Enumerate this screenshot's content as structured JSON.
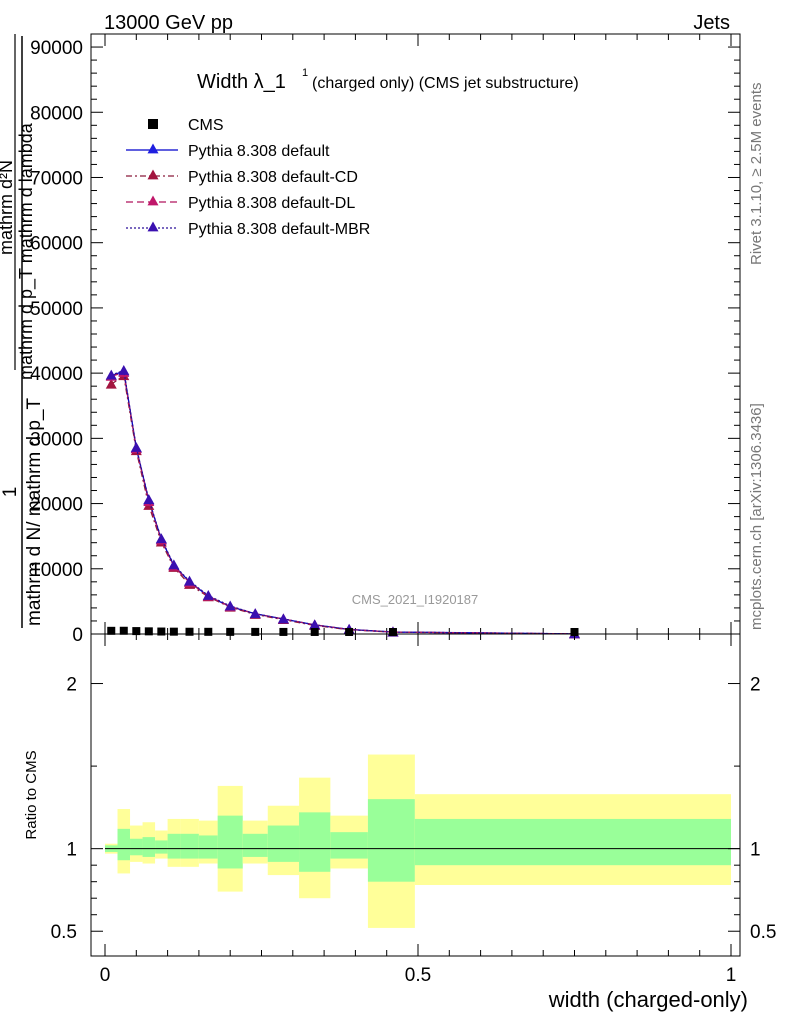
{
  "header": {
    "left": "13000 GeV pp",
    "right": "Jets"
  },
  "side_labels": {
    "rivet": "Rivet 3.1.10, ≥ 2.5M events",
    "mcplots": "mcplots.cern.ch [arXiv:1306.3436]"
  },
  "chart_data": [
    {
      "type": "line",
      "title": "Width λ_1",
      "title_superscript": "1",
      "subtitle": "(charged only) (CMS jet substructure)",
      "watermark": "CMS_2021_I1920187",
      "ylabel": {
        "num_prefix": "1",
        "den": "mathrm d N/ mathrm d p_T",
        "num2": "mathrm d²N",
        "den2": "mathrm d p_T mathrm d lambda"
      },
      "xlim": [
        0,
        1
      ],
      "ylim": [
        0,
        92000
      ],
      "yticks": [
        0,
        10000,
        20000,
        30000,
        40000,
        50000,
        60000,
        70000,
        80000,
        90000
      ],
      "ytick_labels": [
        "0",
        "10000",
        "20000",
        "30000",
        "40000",
        "50000",
        "60000",
        "70000",
        "80000",
        "90000"
      ],
      "legend_position": "top-left",
      "cms": {
        "name": "CMS",
        "x": [
          0.01,
          0.03,
          0.05,
          0.07,
          0.09,
          0.11,
          0.135,
          0.165,
          0.2,
          0.24,
          0.285,
          0.335,
          0.39,
          0.46,
          0.75
        ],
        "y": [
          180,
          190,
          140,
          100,
          72,
          52,
          38,
          28,
          20,
          15,
          10,
          6,
          3,
          1,
          0.5
        ]
      },
      "x": [
        0.01,
        0.03,
        0.05,
        0.07,
        0.09,
        0.11,
        0.135,
        0.165,
        0.2,
        0.24,
        0.285,
        0.335,
        0.39,
        0.46,
        0.75
      ],
      "series": [
        {
          "name": "Pythia 8.308 default",
          "color": "#0000cc",
          "dash": "",
          "marker_color": "#1f1fe0",
          "values": [
            39600,
            40300,
            28500,
            20500,
            14500,
            10500,
            8000,
            5800,
            4200,
            3100,
            2300,
            1400,
            700,
            300,
            20
          ]
        },
        {
          "name": "Pythia 8.308 default-CD",
          "color": "#8b1a3a",
          "dash": "6,3,2,3",
          "marker_color": "#a3153f",
          "values": [
            38300,
            39600,
            28100,
            19700,
            14100,
            10200,
            7600,
            5700,
            4100,
            3000,
            2200,
            1300,
            650,
            280,
            18
          ]
        },
        {
          "name": "Pythia 8.308 default-DL",
          "color": "#b0155e",
          "dash": "7,4",
          "marker_color": "#c0176a",
          "values": [
            39500,
            40100,
            28400,
            20300,
            14400,
            10400,
            7900,
            5800,
            4200,
            3100,
            2300,
            1400,
            700,
            300,
            20
          ]
        },
        {
          "name": "Pythia 8.308 default-MBR",
          "color": "#2a0f99",
          "dash": "2,2",
          "marker_color": "#3a10b0",
          "values": [
            39700,
            40400,
            28600,
            20600,
            14600,
            10600,
            8100,
            5900,
            4300,
            3100,
            2300,
            1400,
            700,
            300,
            20
          ]
        }
      ]
    },
    {
      "type": "area",
      "ylabel": "Ratio to CMS",
      "xlabel": "width (charged-only)",
      "xlim": [
        0,
        1
      ],
      "xticks": [
        0,
        0.5,
        1
      ],
      "xtick_labels": [
        "0",
        "0.5",
        "1"
      ],
      "ylim": [
        0.35,
        2.3
      ],
      "yticks": [
        0.5,
        1,
        2
      ],
      "ytick_labels": [
        "0.5",
        "1",
        "2"
      ],
      "reference": 1,
      "bins": [
        {
          "x0": 0.0,
          "x1": 0.02,
          "y_lo": 0.97,
          "y_hi": 1.03,
          "g_lo": 0.98,
          "g_hi": 1.02
        },
        {
          "x0": 0.02,
          "x1": 0.04,
          "y_lo": 0.85,
          "y_hi": 1.24,
          "g_lo": 0.93,
          "g_hi": 1.12
        },
        {
          "x0": 0.04,
          "x1": 0.06,
          "y_lo": 0.92,
          "y_hi": 1.14,
          "g_lo": 0.96,
          "g_hi": 1.06
        },
        {
          "x0": 0.06,
          "x1": 0.08,
          "y_lo": 0.91,
          "y_hi": 1.16,
          "g_lo": 0.95,
          "g_hi": 1.07
        },
        {
          "x0": 0.08,
          "x1": 0.1,
          "y_lo": 0.94,
          "y_hi": 1.11,
          "g_lo": 0.97,
          "g_hi": 1.05
        },
        {
          "x0": 0.1,
          "x1": 0.12,
          "y_lo": 0.89,
          "y_hi": 1.18,
          "g_lo": 0.94,
          "g_hi": 1.09
        },
        {
          "x0": 0.12,
          "x1": 0.15,
          "y_lo": 0.89,
          "y_hi": 1.18,
          "g_lo": 0.94,
          "g_hi": 1.09
        },
        {
          "x0": 0.15,
          "x1": 0.18,
          "y_lo": 0.91,
          "y_hi": 1.17,
          "g_lo": 0.94,
          "g_hi": 1.08
        },
        {
          "x0": 0.18,
          "x1": 0.22,
          "y_lo": 0.74,
          "y_hi": 1.38,
          "g_lo": 0.88,
          "g_hi": 1.2
        },
        {
          "x0": 0.22,
          "x1": 0.26,
          "y_lo": 0.91,
          "y_hi": 1.17,
          "g_lo": 0.95,
          "g_hi": 1.09
        },
        {
          "x0": 0.26,
          "x1": 0.31,
          "y_lo": 0.84,
          "y_hi": 1.26,
          "g_lo": 0.92,
          "g_hi": 1.14
        },
        {
          "x0": 0.31,
          "x1": 0.36,
          "y_lo": 0.7,
          "y_hi": 1.43,
          "g_lo": 0.86,
          "g_hi": 1.22
        },
        {
          "x0": 0.36,
          "x1": 0.42,
          "y_lo": 0.88,
          "y_hi": 1.2,
          "g_lo": 0.94,
          "g_hi": 1.1
        },
        {
          "x0": 0.42,
          "x1": 0.495,
          "y_lo": 0.52,
          "y_hi": 1.57,
          "g_lo": 0.8,
          "g_hi": 1.3
        },
        {
          "x0": 0.495,
          "x1": 1.0,
          "y_lo": 0.78,
          "y_hi": 1.33,
          "g_lo": 0.9,
          "g_hi": 1.18
        }
      ],
      "colors": {
        "band_outer": "#ffff99",
        "band_inner": "#99ff99",
        "reference_line": "#000000"
      }
    }
  ]
}
